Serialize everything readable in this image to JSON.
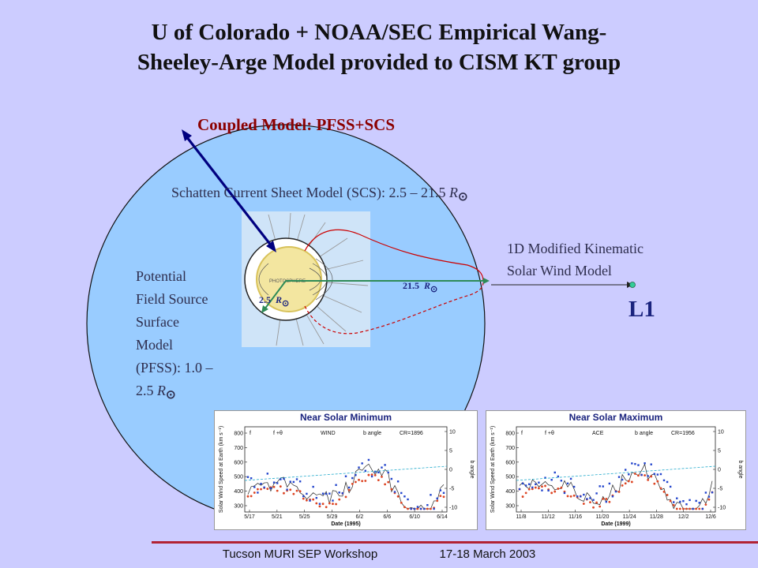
{
  "title": {
    "line1": "U of Colorado + NOAA/SEC Empirical Wang-",
    "line2": "Sheeley-Arge Model provided to CISM KT group"
  },
  "coupled_label": "Coupled Model: PFSS+SCS",
  "scs_label": {
    "text": "Schatten Current Sheet Model (SCS): 2.5 – 21.5",
    "unit": "R"
  },
  "pfss_label": {
    "lines": [
      "Potential",
      "Field Source",
      "Surface",
      "Model",
      "(PFSS): 1.0 –"
    ],
    "last": "2.5",
    "unit": "R"
  },
  "mk_label": {
    "line1": "1D Modified Kinematic",
    "line2": "Solar Wind Model"
  },
  "l1_label": "L1",
  "diagram": {
    "photosphere": "PHOTOSPHERE",
    "r_inner": "2.5",
    "r_outer": "21.5",
    "unit": "R"
  },
  "panels": [
    {
      "title": "Near Solar Minimum",
      "legend": [
        "f",
        "f +θ",
        "WIND",
        "b angle",
        "CR=1896"
      ],
      "ylabel": "Solar Wind Speed at Earth (km s⁻¹)",
      "yticks": [
        "800",
        "700",
        "600",
        "500",
        "400",
        "300"
      ],
      "xticks": [
        "5/17",
        "5/21",
        "5/25",
        "5/29",
        "6/2",
        "6/6",
        "6/10",
        "6/14"
      ],
      "xlabel": "Date (1995)",
      "b_ticks": [
        "10",
        "5",
        "0",
        "-5",
        "-10"
      ],
      "b_label": "b angle"
    },
    {
      "title": "Near Solar Maximum",
      "legend": [
        "f",
        "f +θ",
        "ACE",
        "b angle",
        "CR=1956"
      ],
      "ylabel": "Solar Wind Speed at Earth (km s⁻¹)",
      "yticks": [
        "800",
        "700",
        "600",
        "500",
        "400",
        "300"
      ],
      "xticks": [
        "11/8",
        "11/12",
        "11/16",
        "11/20",
        "11/24",
        "11/28",
        "12/2",
        "12/6"
      ],
      "xlabel": "Date (1999)",
      "b_ticks": [
        "10",
        "5",
        "0",
        "-5",
        "-10"
      ],
      "b_label": "b angle"
    }
  ],
  "footer": {
    "left": "Tucson MURI SEP Workshop",
    "right": "17-18 March 2003"
  },
  "colors": {
    "background": "#ccccff",
    "domain_fill": "#99ccff",
    "arrow": "#000080",
    "field_line": "#cc0000",
    "radial_arrow": "#2e8b57",
    "l1_dot": "#33cc99"
  }
}
